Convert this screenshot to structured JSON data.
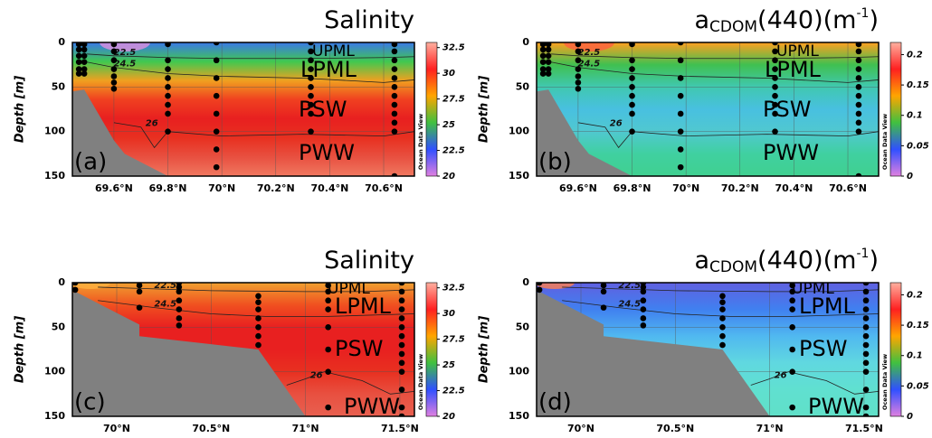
{
  "chart_data": [
    {
      "type": "section",
      "title": [
        "Salinity"
      ],
      "ylabel": "Depth [m]",
      "panel_label": "(a)",
      "annotations": [
        "UPML",
        "LPML",
        "PSW",
        "PWW"
      ],
      "xlim": [
        69.446,
        70.714
      ],
      "ylim": [
        150,
        0
      ],
      "yticks": [
        0,
        50,
        100,
        150
      ],
      "xticks": [
        {
          "value": 69.6,
          "label": "69.6°N"
        },
        {
          "value": 69.8,
          "label": "69.8°N"
        },
        {
          "value": 70,
          "label": "70°N"
        },
        {
          "value": 70.2,
          "label": "70.2°N"
        },
        {
          "value": 70.4,
          "label": "70.4°N"
        },
        {
          "value": 70.6,
          "label": "70.6°N"
        }
      ],
      "grid": true,
      "field_colors": [
        "#3a78e8",
        "#40c850",
        "#f0a020",
        "#f04020",
        "#e82020",
        "#e83020",
        "#e85040",
        "#f07860"
      ],
      "colorbar": {
        "label": "Ocean Data View",
        "lim": [
          20,
          33
        ],
        "ticks": [
          20,
          22.5,
          25,
          27.5,
          30,
          32.5
        ],
        "colors": [
          "#e080e0",
          "#3050ff",
          "#40c040",
          "#ffa500",
          "#ff2020",
          "#ffb0a0"
        ]
      },
      "bottom": {
        "x": [
          69.446,
          69.49,
          69.6,
          69.64,
          69.8
        ],
        "depth": [
          55,
          53,
          110,
          125,
          150
        ]
      },
      "contours": [
        {
          "level": 22.5,
          "x": [
            69.5,
            69.6,
            69.8,
            70,
            70.3,
            70.6,
            70.714
          ],
          "depth": [
            13,
            15,
            17,
            18,
            18,
            17,
            16
          ]
        },
        {
          "level": 24.5,
          "x": [
            69.5,
            69.6,
            69.8,
            70,
            70.3,
            70.6,
            70.714
          ],
          "depth": [
            22,
            28,
            35,
            38,
            40,
            45,
            42
          ]
        },
        {
          "level": 26,
          "x": [
            69.6,
            69.7,
            69.75,
            69.8,
            70,
            70.3,
            70.6,
            70.714
          ],
          "depth": [
            90,
            95,
            118,
            100,
            105,
            103,
            105,
            100
          ]
        }
      ],
      "stations": [
        {
          "x": 69.47,
          "depths": [
            2,
            8,
            15,
            22,
            30,
            35
          ]
        },
        {
          "x": 69.49,
          "depths": [
            2,
            8,
            15,
            22,
            30,
            35
          ]
        },
        {
          "x": 69.6,
          "depths": [
            2,
            10,
            20,
            30,
            38,
            45,
            52
          ]
        },
        {
          "x": 69.8,
          "depths": [
            2,
            20,
            30,
            40,
            50,
            60,
            70,
            80,
            100
          ]
        },
        {
          "x": 69.98,
          "depths": [
            0,
            20,
            40,
            60,
            80,
            100,
            120,
            140
          ]
        },
        {
          "x": 70.33,
          "depths": [
            0,
            10,
            20,
            30,
            40,
            50,
            60,
            70,
            80,
            100
          ]
        },
        {
          "x": 70.64,
          "depths": [
            2,
            10,
            20,
            30,
            40,
            50,
            60,
            70,
            80,
            90,
            100,
            150
          ]
        }
      ]
    },
    {
      "type": "section",
      "title": [
        "a",
        "CDOM",
        "(440)(m",
        "-1",
        ")"
      ],
      "ylabel": "Depth [m]",
      "panel_label": "(b)",
      "annotations": [
        "UPML",
        "LPML",
        "PSW",
        "PWW"
      ],
      "xlim": [
        69.446,
        70.714
      ],
      "ylim": [
        150,
        0
      ],
      "yticks": [
        0,
        50,
        100,
        150
      ],
      "xticks": [
        {
          "value": 69.6,
          "label": "69.6°N"
        },
        {
          "value": 69.8,
          "label": "69.8°N"
        },
        {
          "value": 70,
          "label": "70°N"
        },
        {
          "value": 70.2,
          "label": "70.2°N"
        },
        {
          "value": 70.4,
          "label": "70.4°N"
        },
        {
          "value": 70.6,
          "label": "70.6°N"
        }
      ],
      "grid": true,
      "field_colors": [
        "#ffa020",
        "#40c050",
        "#40c8b0",
        "#48c0e0",
        "#50c8d0",
        "#40d0a0",
        "#40d090"
      ],
      "colorbar": {
        "label": "Ocean Data View",
        "lim": [
          0,
          0.22
        ],
        "ticks": [
          0,
          0.05,
          0.1,
          0.15,
          0.2
        ],
        "colors": [
          "#e080e0",
          "#3050ff",
          "#40c040",
          "#ffa500",
          "#ff2020",
          "#ffb0a0"
        ]
      },
      "bottom": {
        "x": [
          69.446,
          69.49,
          69.6,
          69.64,
          69.8
        ],
        "depth": [
          55,
          53,
          110,
          125,
          150
        ]
      },
      "contours": [
        {
          "level": 22.5,
          "x": [
            69.5,
            69.6,
            69.8,
            70,
            70.3,
            70.6,
            70.714
          ],
          "depth": [
            13,
            15,
            17,
            18,
            18,
            17,
            16
          ]
        },
        {
          "level": 24.5,
          "x": [
            69.5,
            69.6,
            69.8,
            70,
            70.3,
            70.6,
            70.714
          ],
          "depth": [
            22,
            28,
            35,
            38,
            40,
            45,
            42
          ]
        },
        {
          "level": 26,
          "x": [
            69.6,
            69.7,
            69.75,
            69.8,
            70,
            70.3,
            70.6,
            70.714
          ],
          "depth": [
            90,
            95,
            118,
            100,
            105,
            103,
            105,
            100
          ]
        }
      ],
      "stations": [
        {
          "x": 69.47,
          "depths": [
            2,
            8,
            15,
            22,
            30,
            35
          ]
        },
        {
          "x": 69.49,
          "depths": [
            2,
            8,
            15,
            22,
            30,
            35
          ]
        },
        {
          "x": 69.6,
          "depths": [
            2,
            10,
            20,
            30,
            38,
            45,
            52
          ]
        },
        {
          "x": 69.8,
          "depths": [
            2,
            20,
            30,
            40,
            50,
            60,
            70,
            80,
            100
          ]
        },
        {
          "x": 69.98,
          "depths": [
            0,
            20,
            40,
            60,
            80,
            100,
            120,
            140
          ]
        },
        {
          "x": 70.33,
          "depths": [
            0,
            10,
            20,
            30,
            40,
            50,
            60,
            70,
            80,
            100
          ]
        },
        {
          "x": 70.64,
          "depths": [
            2,
            10,
            20,
            30,
            40,
            50,
            60,
            70,
            80,
            90,
            100,
            150
          ]
        }
      ]
    },
    {
      "type": "section",
      "title": [
        "Salinity"
      ],
      "ylabel": "Depth [m]",
      "panel_label": "(c)",
      "annotations": [
        "UPML",
        "LPML",
        "PSW",
        "PWW"
      ],
      "xlim": [
        69.765,
        71.577
      ],
      "ylim": [
        150,
        0
      ],
      "yticks": [
        0,
        50,
        100,
        150
      ],
      "xticks": [
        {
          "value": 70,
          "label": "70°N"
        },
        {
          "value": 70.5,
          "label": "70.5°N"
        },
        {
          "value": 71,
          "label": "71°N"
        },
        {
          "value": 71.5,
          "label": "71.5°N"
        }
      ],
      "grid": true,
      "field_colors": [
        "#f0a030",
        "#f05020",
        "#e82020",
        "#e82020",
        "#e83020",
        "#e85040",
        "#e86050"
      ],
      "colorbar": {
        "label": "Ocean Data View",
        "lim": [
          20,
          33
        ],
        "ticks": [
          20,
          22.5,
          25,
          27.5,
          30,
          32.5
        ],
        "colors": [
          "#e080e0",
          "#3050ff",
          "#40c040",
          "#ffa500",
          "#ff2020",
          "#ffb0a0"
        ]
      },
      "bottom": {
        "x": [
          69.765,
          69.78,
          70.12,
          70.12,
          70.75,
          71.0
        ],
        "depth": [
          12,
          10,
          47,
          60,
          75,
          150
        ]
      },
      "contours": [
        {
          "level": 22.5,
          "x": [
            69.9,
            70.2,
            70.5,
            71,
            71.3,
            71.577
          ],
          "depth": [
            5,
            7,
            9,
            10,
            10,
            8
          ]
        },
        {
          "level": 24.5,
          "x": [
            69.9,
            70.2,
            70.5,
            70.8,
            71.1,
            71.577
          ],
          "depth": [
            20,
            28,
            35,
            38,
            38,
            35
          ]
        },
        {
          "level": 26,
          "x": [
            70.9,
            71,
            71.1,
            71.3,
            71.45,
            71.577
          ],
          "depth": [
            115,
            108,
            100,
            110,
            125,
            122
          ]
        }
      ],
      "stations": [
        {
          "x": 69.78,
          "depths": [
            0,
            8
          ]
        },
        {
          "x": 70.12,
          "depths": [
            3,
            10,
            28
          ]
        },
        {
          "x": 70.33,
          "depths": [
            0,
            5,
            10,
            20,
            30,
            40,
            48
          ]
        },
        {
          "x": 70.75,
          "depths": [
            15,
            22,
            30,
            40,
            50,
            60,
            70
          ]
        },
        {
          "x": 71.12,
          "depths": [
            3,
            10,
            20,
            30,
            50,
            75,
            100,
            140
          ]
        },
        {
          "x": 71.51,
          "depths": [
            0,
            10,
            20,
            30,
            40,
            50,
            60,
            70,
            80,
            90,
            100,
            120,
            140,
            150
          ]
        }
      ]
    },
    {
      "type": "section",
      "title": [
        "a",
        "CDOM",
        "(440)(m",
        "-1",
        ")"
      ],
      "ylabel": "Depth [m]",
      "panel_label": "(d)",
      "annotations": [
        "UPML",
        "LPML",
        "PSW",
        "PWW"
      ],
      "xlim": [
        69.765,
        71.577
      ],
      "ylim": [
        150,
        0
      ],
      "yticks": [
        0,
        50,
        100,
        150
      ],
      "xticks": [
        {
          "value": 70,
          "label": "70°N"
        },
        {
          "value": 70.5,
          "label": "70.5°N"
        },
        {
          "value": 71,
          "label": "71°N"
        },
        {
          "value": 71.5,
          "label": "71.5°N"
        }
      ],
      "grid": true,
      "field_colors": [
        "#6060e0",
        "#4080f0",
        "#50b8f0",
        "#60d8e0",
        "#60e0d0",
        "#60e0c8"
      ],
      "colorbar": {
        "label": "Ocean Data View",
        "lim": [
          0,
          0.22
        ],
        "ticks": [
          0,
          0.05,
          0.1,
          0.15,
          0.2
        ],
        "colors": [
          "#e080e0",
          "#3050ff",
          "#40c040",
          "#ffa500",
          "#ff2020",
          "#ffb0a0"
        ]
      },
      "bottom": {
        "x": [
          69.765,
          69.78,
          70.12,
          70.12,
          70.75,
          71.0
        ],
        "depth": [
          12,
          10,
          47,
          60,
          75,
          150
        ]
      },
      "contours": [
        {
          "level": 22.5,
          "x": [
            69.9,
            70.2,
            70.5,
            71,
            71.3,
            71.577
          ],
          "depth": [
            5,
            7,
            9,
            10,
            10,
            8
          ]
        },
        {
          "level": 24.5,
          "x": [
            69.9,
            70.2,
            70.5,
            70.8,
            71.1,
            71.577
          ],
          "depth": [
            20,
            28,
            35,
            38,
            38,
            35
          ]
        },
        {
          "level": 26,
          "x": [
            70.9,
            71,
            71.1,
            71.3,
            71.45,
            71.577
          ],
          "depth": [
            115,
            108,
            100,
            110,
            125,
            122
          ]
        }
      ],
      "stations": [
        {
          "x": 69.78,
          "depths": [
            0,
            8
          ]
        },
        {
          "x": 70.12,
          "depths": [
            3,
            10,
            28
          ]
        },
        {
          "x": 70.33,
          "depths": [
            0,
            5,
            10,
            20,
            30,
            40,
            48
          ]
        },
        {
          "x": 70.75,
          "depths": [
            15,
            22,
            30,
            40,
            50,
            60,
            70
          ]
        },
        {
          "x": 71.12,
          "depths": [
            3,
            10,
            20,
            30,
            50,
            75,
            100,
            140
          ]
        },
        {
          "x": 71.51,
          "depths": [
            0,
            10,
            20,
            30,
            40,
            50,
            60,
            70,
            80,
            90,
            100,
            120,
            140,
            150
          ]
        }
      ]
    }
  ]
}
